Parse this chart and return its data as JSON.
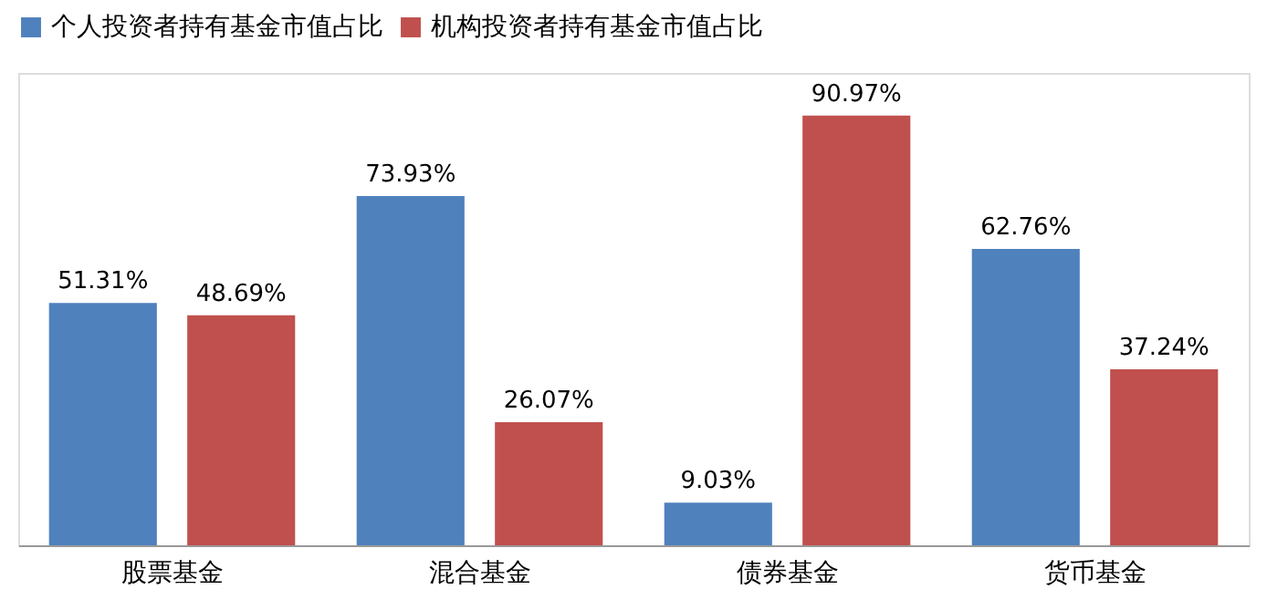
{
  "chart_data": {
    "type": "bar",
    "categories": [
      "股票基金",
      "混合基金",
      "债券基金",
      "货币基金"
    ],
    "series": [
      {
        "name": "个人投资者持有基金市值占比",
        "color": "#4f81bd",
        "values": [
          51.31,
          73.93,
          9.03,
          62.76
        ],
        "value_labels": [
          "51.31%",
          "73.93%",
          "9.03%",
          "62.76%"
        ]
      },
      {
        "name": "机构投资者持有基金市值占比",
        "color": "#c0504d",
        "values": [
          48.69,
          26.07,
          90.97,
          37.24
        ],
        "value_labels": [
          "48.69%",
          "26.07%",
          "90.97%",
          "37.24%"
        ]
      }
    ],
    "legend": "top",
    "grid": false
  }
}
